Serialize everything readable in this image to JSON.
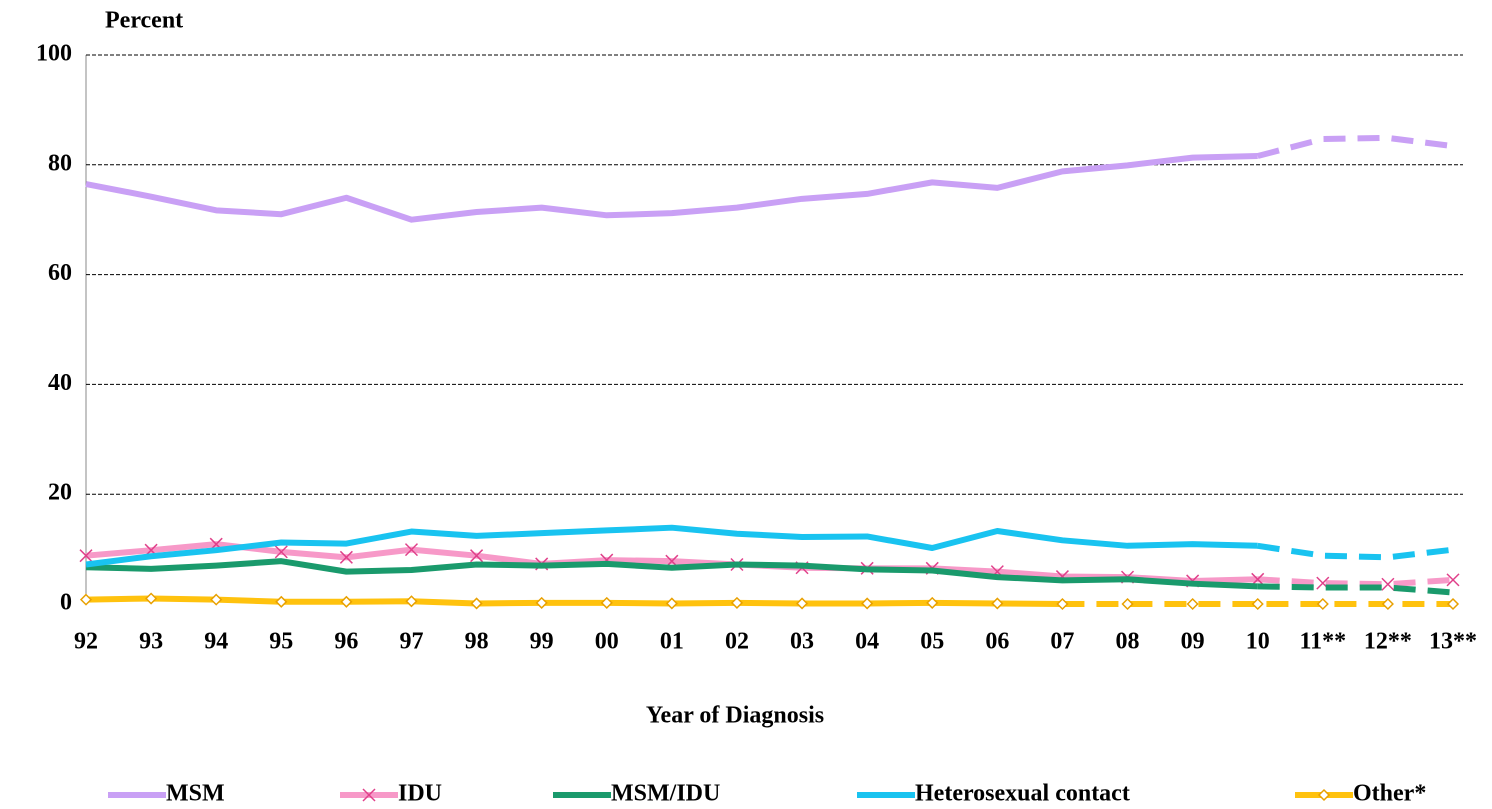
{
  "chart_data": {
    "type": "line",
    "y_label": "Percent",
    "x_label": "Year of Diagnosis",
    "categories": [
      "92",
      "93",
      "94",
      "95",
      "96",
      "97",
      "98",
      "99",
      "00",
      "01",
      "02",
      "03",
      "04",
      "05",
      "06",
      "07",
      "08",
      "09",
      "10",
      "11**",
      "12**",
      "13**"
    ],
    "ylim": [
      0,
      100
    ],
    "yticks": [
      0,
      20,
      40,
      60,
      80,
      100
    ],
    "grid": true,
    "legend": "bottom",
    "series": [
      {
        "name": "MSM",
        "color": "#c9a0f5",
        "marker": "none",
        "dash_from": "10",
        "values": [
          76.5,
          74.2,
          71.7,
          71.0,
          74.0,
          70.0,
          71.4,
          72.2,
          70.8,
          71.2,
          72.2,
          73.8,
          74.7,
          76.8,
          75.8,
          78.8,
          79.9,
          81.3,
          81.6,
          84.7,
          84.9,
          83.4
        ]
      },
      {
        "name": "IDU",
        "color": "#f799c8",
        "marker": "x",
        "dash_from": "10",
        "values": [
          8.8,
          9.8,
          10.9,
          9.5,
          8.5,
          9.9,
          8.8,
          7.3,
          8.0,
          7.8,
          7.2,
          6.6,
          6.5,
          6.5,
          5.9,
          5.0,
          4.9,
          4.2,
          4.5,
          3.8,
          3.6,
          4.4
        ]
      },
      {
        "name": "MSM/IDU",
        "color": "#1a9a6c",
        "marker": "none",
        "dash_from": "10",
        "values": [
          6.7,
          6.4,
          7.0,
          7.8,
          5.9,
          6.2,
          7.2,
          7.0,
          7.3,
          6.6,
          7.2,
          7.0,
          6.3,
          6.1,
          4.9,
          4.3,
          4.5,
          3.7,
          3.2,
          3.0,
          3.0,
          2.1
        ]
      },
      {
        "name": "Heterosexual contact",
        "color": "#19c3f0",
        "marker": "none",
        "dash_from": "10",
        "values": [
          7.2,
          8.7,
          9.8,
          11.2,
          11.0,
          13.2,
          12.4,
          12.9,
          13.4,
          13.9,
          12.8,
          12.2,
          12.3,
          10.2,
          13.3,
          11.6,
          10.6,
          10.9,
          10.6,
          8.8,
          8.5,
          9.9
        ]
      },
      {
        "name": "Other*",
        "color": "#ffc20e",
        "marker": "diamond",
        "dash_from": "07",
        "values": [
          0.8,
          1.0,
          0.8,
          0.4,
          0.4,
          0.5,
          0.1,
          0.2,
          0.2,
          0.1,
          0.2,
          0.1,
          0.1,
          0.2,
          0.1,
          0.0,
          0.0,
          0.0,
          0.0,
          0.0,
          0.0,
          0.0
        ]
      }
    ]
  }
}
